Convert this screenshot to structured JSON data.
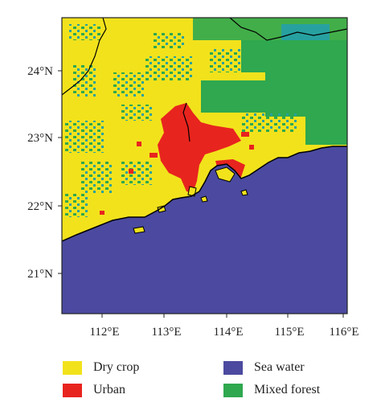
{
  "map": {
    "y_ticks": [
      "24°N",
      "23°N",
      "22°N",
      "21°N"
    ],
    "x_ticks": [
      "112°E",
      "113°E",
      "114°E",
      "115°E",
      "116°E"
    ]
  },
  "legend": [
    {
      "label": "Dry crop",
      "color": "#f2e21c"
    },
    {
      "label": "Urban",
      "color": "#e8241e"
    },
    {
      "label": "Sea water",
      "color": "#4b4aa0"
    },
    {
      "label": "Mixed forest",
      "color": "#2fa84f"
    }
  ],
  "colors": {
    "dry_crop": "#f2e21c",
    "urban": "#e8241e",
    "sea_water": "#4b4aa0",
    "mixed_forest": "#2fa84f",
    "teal_patch": "#27a1a0",
    "coastline": "#000000"
  }
}
